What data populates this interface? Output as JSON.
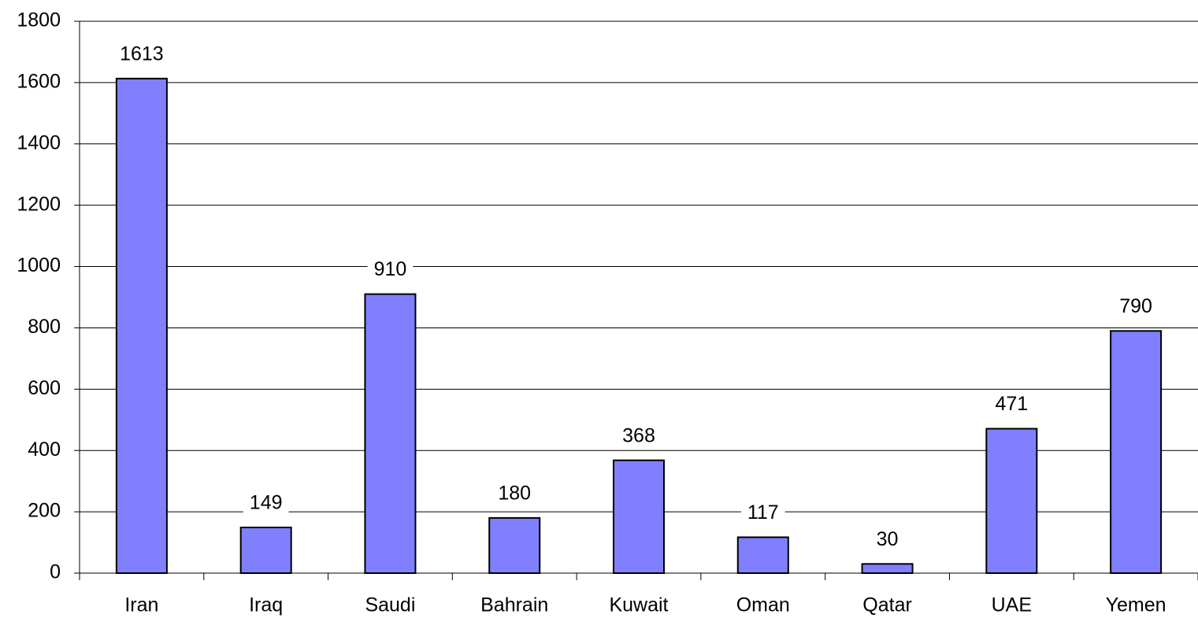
{
  "chart_data": {
    "type": "bar",
    "categories": [
      "Iran",
      "Iraq",
      "Saudi",
      "Bahrain",
      "Kuwait",
      "Oman",
      "Qatar",
      "UAE",
      "Yemen"
    ],
    "values": [
      1613,
      149,
      910,
      180,
      368,
      117,
      30,
      471,
      790
    ],
    "color": "#8080ff",
    "ylim": [
      0,
      1800
    ],
    "yticks": [
      0,
      200,
      400,
      600,
      800,
      1000,
      1200,
      1400,
      1600,
      1800
    ],
    "grid": true
  }
}
